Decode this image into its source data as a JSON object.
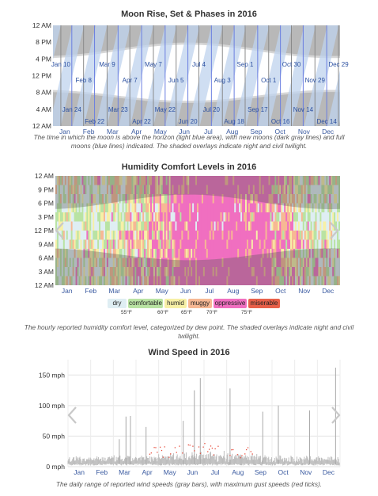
{
  "chart_data": [
    {
      "type": "area",
      "title": "Moon Rise, Set & Phases in 2016",
      "caption": "The time in which the moon is above the horizon (light blue area), with new moons (dark gray lines) and full moons (blue lines) indicated. The shaded overlays indicate night and civil twilight.",
      "y_ticks": [
        "12 AM",
        "8 PM",
        "4 PM",
        "12 PM",
        "8 AM",
        "4 AM",
        "12 AM"
      ],
      "x_ticks": [
        "Jan",
        "Feb",
        "Mar",
        "Apr",
        "May",
        "Jun",
        "Jul",
        "Aug",
        "Sep",
        "Oct",
        "Nov",
        "Dec"
      ],
      "phase_labels": [
        {
          "text": "Jan 10",
          "doy": 10,
          "hour": 14.2
        },
        {
          "text": "Feb 8",
          "doy": 39,
          "hour": 10.4
        },
        {
          "text": "Mar 9",
          "doy": 69,
          "hour": 14.2
        },
        {
          "text": "Apr 7",
          "doy": 98,
          "hour": 10.4
        },
        {
          "text": "May 7",
          "doy": 128,
          "hour": 14.2
        },
        {
          "text": "Jun 5",
          "doy": 157,
          "hour": 10.4
        },
        {
          "text": "Jul 4",
          "doy": 186,
          "hour": 14.2
        },
        {
          "text": "Aug 3",
          "doy": 216,
          "hour": 10.4
        },
        {
          "text": "Sep 1",
          "doy": 245,
          "hour": 14.2
        },
        {
          "text": "Oct 1",
          "doy": 275,
          "hour": 10.4
        },
        {
          "text": "Oct 30",
          "doy": 304,
          "hour": 14.2
        },
        {
          "text": "Nov 29",
          "doy": 334,
          "hour": 10.4
        },
        {
          "text": "Dec 29",
          "doy": 364,
          "hour": 14.2
        },
        {
          "text": "Jan 24",
          "doy": 24,
          "hour": 3.4
        },
        {
          "text": "Feb 22",
          "doy": 53,
          "hour": 0.6
        },
        {
          "text": "Mar 23",
          "doy": 83,
          "hour": 3.4
        },
        {
          "text": "Apr 22",
          "doy": 113,
          "hour": 0.6
        },
        {
          "text": "May 22",
          "doy": 143,
          "hour": 3.4
        },
        {
          "text": "Jun 20",
          "doy": 172,
          "hour": 0.6
        },
        {
          "text": "Jul 20",
          "doy": 202,
          "hour": 3.4
        },
        {
          "text": "Aug 18",
          "doy": 231,
          "hour": 0.6
        },
        {
          "text": "Sep 17",
          "doy": 261,
          "hour": 3.4
        },
        {
          "text": "Oct 16",
          "doy": 290,
          "hour": 0.6
        },
        {
          "text": "Nov 14",
          "doy": 319,
          "hour": 3.4
        },
        {
          "text": "Dec 14",
          "doy": 349,
          "hour": 0.6
        }
      ],
      "new_moons_doy": [
        10,
        39,
        69,
        98,
        128,
        157,
        186,
        216,
        245,
        275,
        304,
        334,
        364
      ],
      "full_moons_doy": [
        24,
        53,
        83,
        113,
        143,
        172,
        202,
        231,
        261,
        290,
        319,
        349
      ]
    },
    {
      "type": "heatmap",
      "title": "Humidity Comfort Levels in 2016",
      "caption": "The hourly reported humidity comfort level, categorized by dew point. The shaded overlays indicate night and civil twilight.",
      "y_ticks": [
        "12 AM",
        "9 PM",
        "6 PM",
        "3 PM",
        "12 PM",
        "9 AM",
        "6 AM",
        "3 AM",
        "12 AM"
      ],
      "x_ticks": [
        "Jan",
        "Feb",
        "Mar",
        "Apr",
        "May",
        "Jun",
        "Jul",
        "Aug",
        "Sep",
        "Oct",
        "Nov",
        "Dec"
      ],
      "legend": [
        {
          "label": "dry",
          "color": "#dfeef3"
        },
        {
          "label": "comfortable",
          "color": "#b9e3a3"
        },
        {
          "label": "humid",
          "color": "#f7f0a6"
        },
        {
          "label": "muggy",
          "color": "#f7b894"
        },
        {
          "label": "oppressive",
          "color": "#f06fc0"
        },
        {
          "label": "miserable",
          "color": "#e8604a"
        }
      ],
      "thresholds": [
        "55°F",
        "60°F",
        "65°F",
        "70°F",
        "75°F"
      ],
      "monthly_mix": [
        {
          "month": "Jan",
          "dry": 0.45,
          "comfortable": 0.3,
          "humid": 0.15,
          "muggy": 0.08,
          "oppressive": 0.02
        },
        {
          "month": "Feb",
          "dry": 0.4,
          "comfortable": 0.3,
          "humid": 0.18,
          "muggy": 0.09,
          "oppressive": 0.03
        },
        {
          "month": "Mar",
          "dry": 0.25,
          "comfortable": 0.3,
          "humid": 0.22,
          "muggy": 0.15,
          "oppressive": 0.08
        },
        {
          "month": "Apr",
          "dry": 0.1,
          "comfortable": 0.2,
          "humid": 0.25,
          "muggy": 0.25,
          "oppressive": 0.2
        },
        {
          "month": "May",
          "dry": 0.02,
          "comfortable": 0.08,
          "humid": 0.15,
          "muggy": 0.3,
          "oppressive": 0.45
        },
        {
          "month": "Jun",
          "dry": 0.0,
          "comfortable": 0.02,
          "humid": 0.05,
          "muggy": 0.2,
          "oppressive": 0.73
        },
        {
          "month": "Jul",
          "dry": 0.0,
          "comfortable": 0.0,
          "humid": 0.02,
          "muggy": 0.13,
          "oppressive": 0.85
        },
        {
          "month": "Aug",
          "dry": 0.0,
          "comfortable": 0.0,
          "humid": 0.02,
          "muggy": 0.13,
          "oppressive": 0.85
        },
        {
          "month": "Sep",
          "dry": 0.0,
          "comfortable": 0.02,
          "humid": 0.06,
          "muggy": 0.2,
          "oppressive": 0.72
        },
        {
          "month": "Oct",
          "dry": 0.05,
          "comfortable": 0.15,
          "humid": 0.2,
          "muggy": 0.3,
          "oppressive": 0.3
        },
        {
          "month": "Nov",
          "dry": 0.25,
          "comfortable": 0.3,
          "humid": 0.2,
          "muggy": 0.15,
          "oppressive": 0.1
        },
        {
          "month": "Dec",
          "dry": 0.4,
          "comfortable": 0.3,
          "humid": 0.15,
          "muggy": 0.1,
          "oppressive": 0.05
        }
      ]
    },
    {
      "type": "bar",
      "title": "Wind Speed in 2016",
      "caption": "The daily range of reported wind speeds (gray bars), with maximum gust speeds (red ticks).",
      "y_ticks": [
        "0 mph",
        "50 mph",
        "100 mph",
        "150 mph"
      ],
      "y_values": [
        0,
        50,
        100,
        150
      ],
      "ylim": [
        0,
        175
      ],
      "x_ticks": [
        "Jan",
        "Feb",
        "Mar",
        "Apr",
        "May",
        "Jun",
        "Jul",
        "Aug",
        "Sep",
        "Oct",
        "Nov",
        "Dec"
      ],
      "spikes": [
        {
          "doy": 69,
          "mph": 45
        },
        {
          "doy": 78,
          "mph": 82
        },
        {
          "doy": 84,
          "mph": 83
        },
        {
          "doy": 105,
          "mph": 65
        },
        {
          "doy": 155,
          "mph": 75
        },
        {
          "doy": 170,
          "mph": 125
        },
        {
          "doy": 178,
          "mph": 145
        },
        {
          "doy": 218,
          "mph": 128
        },
        {
          "doy": 262,
          "mph": 90
        },
        {
          "doy": 283,
          "mph": 100
        },
        {
          "doy": 325,
          "mph": 92
        },
        {
          "doy": 360,
          "mph": 162
        }
      ]
    }
  ]
}
